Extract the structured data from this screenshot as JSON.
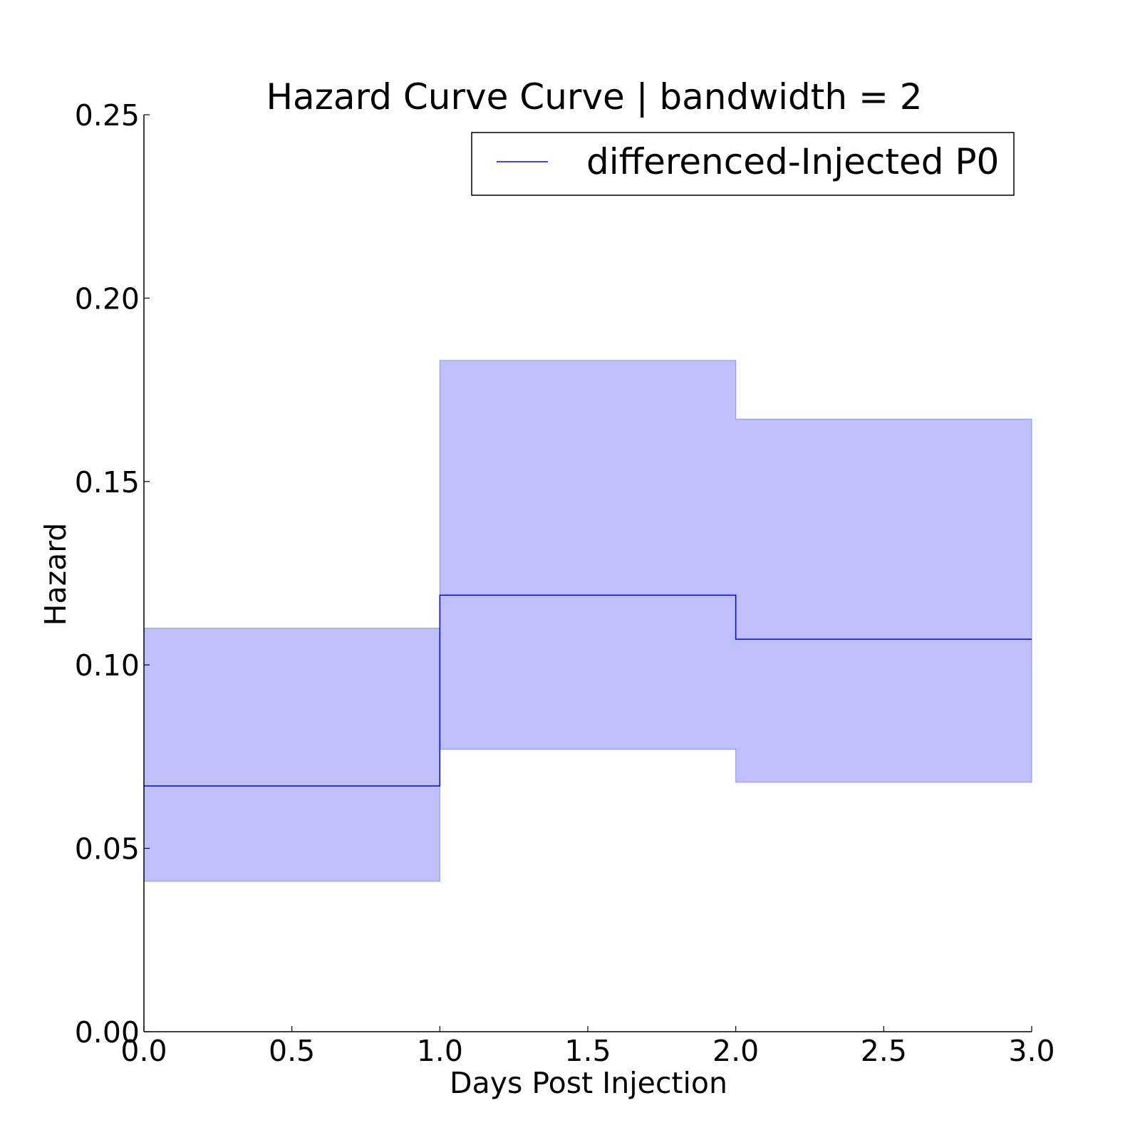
{
  "chart_data": {
    "type": "line",
    "title": "Hazard Curve Curve | bandwidth = 2",
    "xlabel": "Days Post Injection",
    "ylabel": "Hazard",
    "xlim": [
      0.0,
      3.0
    ],
    "ylim": [
      0.0,
      0.25
    ],
    "x_ticks": [
      "0.0",
      "0.5",
      "1.0",
      "1.5",
      "2.0",
      "2.5",
      "3.0"
    ],
    "y_ticks": [
      "0.00",
      "0.05",
      "0.10",
      "0.15",
      "0.20",
      "0.25"
    ],
    "grid": false,
    "legend_position": "top-right",
    "series": [
      {
        "name": "differenced-Injected P0",
        "color": "#0000ff",
        "band_color": "#bfbffc",
        "step": "post",
        "x": [
          0.0,
          1.0,
          2.0,
          3.0
        ],
        "values": [
          0.067,
          0.119,
          0.107,
          0.107
        ],
        "lower": [
          0.041,
          0.077,
          0.068,
          0.068
        ],
        "upper": [
          0.11,
          0.183,
          0.167,
          0.167
        ]
      }
    ]
  }
}
